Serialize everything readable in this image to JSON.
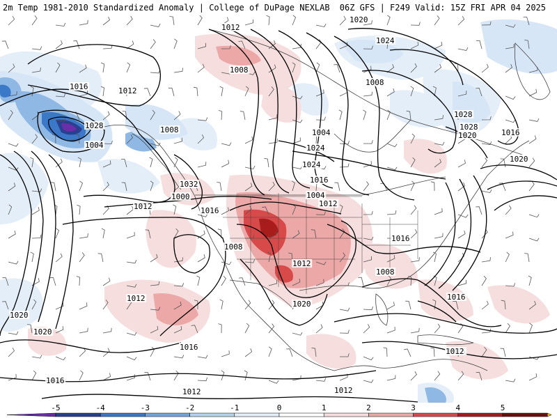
{
  "header": {
    "title_left": "2m Temp 1981-2010 Standardized Anomaly | College of DuPage NEXLAB",
    "title_right": "06Z GFS | F249 Valid: 15Z FRI APR 04 2025"
  },
  "pressure_labels": [
    "1012",
    "1020",
    "1024",
    "1008",
    "1016",
    "1012",
    "1008",
    "1028",
    "1028",
    "1004",
    "1008",
    "1004",
    "1028",
    "1020",
    "1016",
    "1024",
    "1024",
    "1020",
    "1032",
    "1000",
    "1004",
    "1012",
    "1016",
    "1012",
    "1016",
    "1008",
    "1012",
    "1016",
    "1008",
    "1020",
    "1012",
    "1016",
    "1020",
    "1020",
    "1016",
    "1016",
    "1016",
    "1012",
    "1012",
    "1012"
  ],
  "colorbar": {
    "ticks": [
      "-5",
      "-4",
      "-3",
      "-2",
      "-1",
      "0",
      "1",
      "2",
      "3",
      "4",
      "5"
    ],
    "colors": [
      "#6a2fa8",
      "#2b3f8f",
      "#3b78c8",
      "#6fa7dd",
      "#b6d2ee",
      "#e4eef8",
      "#ffffff",
      "#f6dede",
      "#eca7a7",
      "#d84a4a",
      "#a81c1c",
      "#6b0f0f",
      "#f0c020"
    ]
  },
  "colors": {
    "warm_light": "#f6dede",
    "warm_mid": "#eca7a7",
    "warm_strong": "#d84a4a",
    "warm_deep": "#a81c1c",
    "cool_light": "#d6e6f6",
    "cool_mid": "#8fb8e4",
    "cool_strong": "#3b78c8",
    "cool_deep": "#6a2fa8",
    "contour": "#000000",
    "borders": "#404040"
  }
}
